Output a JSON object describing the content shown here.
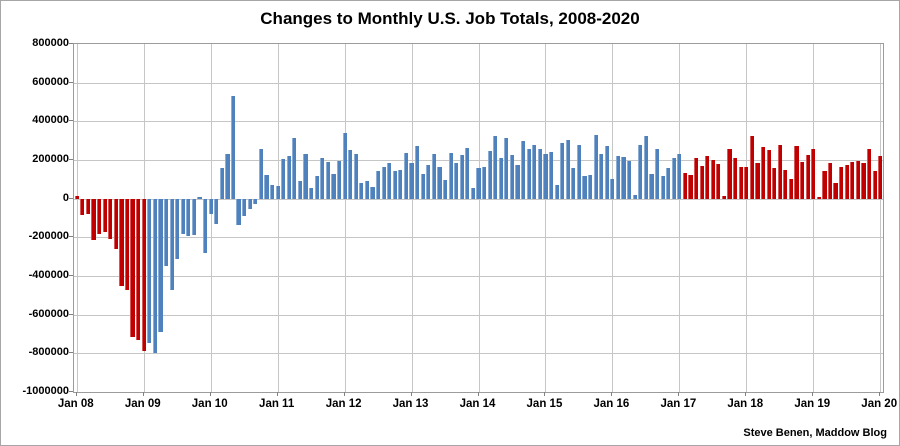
{
  "title": "Changes to Monthly U.S. Job Totals, 2008-2020",
  "credit": "Steve Benen, Maddow Blog",
  "chart_data": {
    "type": "bar",
    "title": "Changes to Monthly U.S. Job Totals, 2008-2020",
    "xlabel": "",
    "ylabel": "",
    "ylim": [
      -1000000,
      800000
    ],
    "grid": true,
    "legend": "none",
    "y_ticks": [
      800000,
      600000,
      400000,
      200000,
      0,
      -200000,
      -400000,
      -600000,
      -800000,
      -1000000
    ],
    "y_tick_labels": [
      "800000",
      "600000",
      "400000",
      "200000",
      "0",
      "-200000",
      "-400000",
      "-600000",
      "-800000",
      "-1000000"
    ],
    "x_tick_labels": [
      "Jan 08",
      "Jan 09",
      "Jan 10",
      "Jan 11",
      "Jan 12",
      "Jan 13",
      "Jan 14",
      "Jan 15",
      "Jan 16",
      "Jan 17",
      "Jan 18",
      "Jan 19",
      "Jan 20"
    ],
    "start_month": "Jan 2008",
    "end_month": "Jan 2020",
    "num_months": 145,
    "colors": {
      "red_bush_trump": "#c00000",
      "blue_obama": "#4f81bd"
    },
    "color_segments": [
      {
        "from": 0,
        "to": 12,
        "color": "#c00000"
      },
      {
        "from": 13,
        "to": 108,
        "color": "#4f81bd"
      },
      {
        "from": 109,
        "to": 144,
        "color": "#c00000"
      }
    ],
    "values": [
      15000,
      -86000,
      -80000,
      -214000,
      -182000,
      -172000,
      -210000,
      -259000,
      -452000,
      -474000,
      -715000,
      -730000,
      -790000,
      -745000,
      -800000,
      -690000,
      -350000,
      -470000,
      -310000,
      -185000,
      -195000,
      -190000,
      10000,
      -280000,
      -80000,
      -130000,
      160000,
      230000,
      530000,
      -135000,
      -90000,
      -55000,
      -30000,
      255000,
      120000,
      70000,
      65000,
      205000,
      220000,
      315000,
      90000,
      230000,
      55000,
      115000,
      210000,
      190000,
      130000,
      195000,
      340000,
      250000,
      230000,
      80000,
      90000,
      60000,
      145000,
      165000,
      185000,
      145000,
      150000,
      235000,
      185000,
      270000,
      130000,
      175000,
      230000,
      165000,
      95000,
      235000,
      185000,
      225000,
      260000,
      55000,
      160000,
      165000,
      245000,
      325000,
      210000,
      315000,
      225000,
      175000,
      300000,
      255000,
      280000,
      255000,
      230000,
      240000,
      70000,
      290000,
      305000,
      160000,
      280000,
      115000,
      125000,
      330000,
      230000,
      270000,
      100000,
      220000,
      215000,
      195000,
      20000,
      280000,
      325000,
      130000,
      255000,
      115000,
      160000,
      210000,
      230000,
      135000,
      120000,
      210000,
      170000,
      220000,
      200000,
      180000,
      15000,
      255000,
      210000,
      165000,
      165000,
      325000,
      185000,
      265000,
      250000,
      160000,
      280000,
      150000,
      100000,
      275000,
      190000,
      225000,
      255000,
      10000,
      145000,
      185000,
      80000,
      165000,
      175000,
      190000,
      195000,
      185000,
      255000,
      145000,
      220000
    ]
  }
}
